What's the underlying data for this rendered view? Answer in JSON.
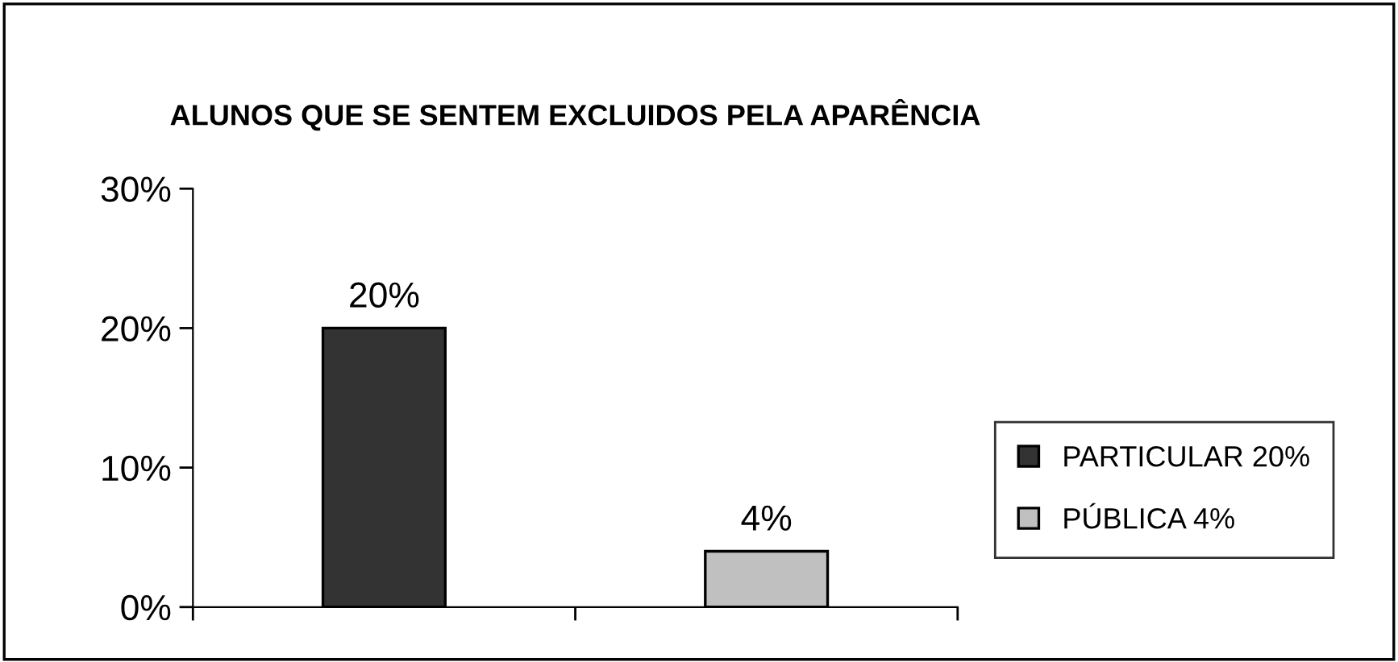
{
  "chart_data": {
    "type": "bar",
    "title": "ALUNOS QUE SE SENTEM EXCLUIDOS PELA APARÊNCIA",
    "categories": [
      null,
      null
    ],
    "series": [
      {
        "name": "PARTICULAR 20%",
        "color": "#333333",
        "values": [
          20,
          null
        ],
        "value_labels": [
          "20%",
          null
        ]
      },
      {
        "name": "PÚBLICA 4%",
        "color": "#c0c0c0",
        "values": [
          null,
          4
        ],
        "value_labels": [
          null,
          "4%"
        ]
      }
    ],
    "ylim": [
      0,
      30
    ],
    "yticks": [
      {
        "value": 0,
        "label": "0%"
      },
      {
        "value": 10,
        "label": "10%"
      },
      {
        "value": 20,
        "label": "20%"
      },
      {
        "value": 30,
        "label": "30%"
      }
    ],
    "grid": false,
    "legend": "right",
    "tick_labels": "y"
  }
}
